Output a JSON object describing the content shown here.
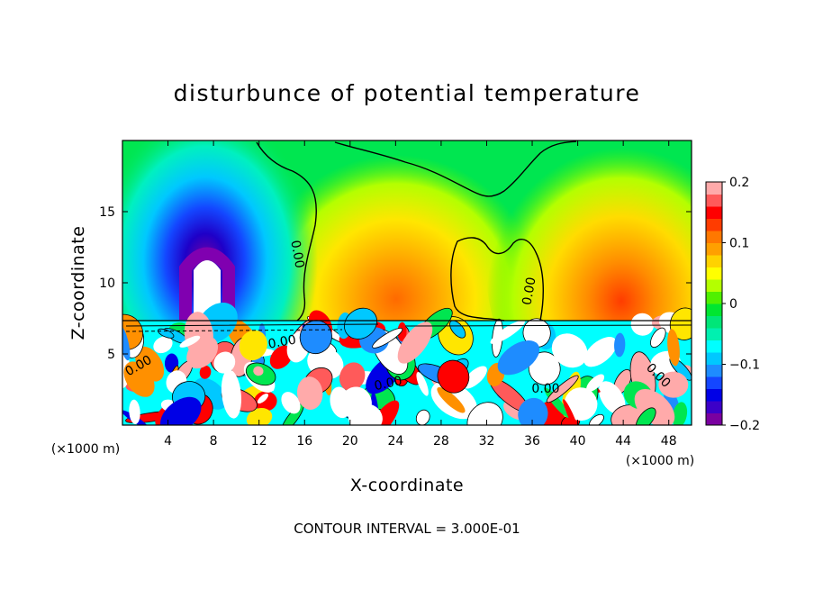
{
  "chart_data": {
    "type": "heatmap",
    "title": "disturbunce of potential temperature",
    "xlabel": "X-coordinate",
    "ylabel": "Z-coordinate",
    "x_unit_label": "(×1000 m)",
    "xlim": [
      0,
      50
    ],
    "ylim": [
      0,
      20
    ],
    "x_ticks": [
      4,
      8,
      12,
      16,
      20,
      24,
      28,
      32,
      36,
      40,
      44,
      48
    ],
    "y_ticks": [
      5,
      10,
      15
    ],
    "colorbar": {
      "range": [
        -0.2,
        0.2
      ],
      "ticks": [
        0.2,
        0.1,
        0,
        -0.1,
        -0.2
      ],
      "tick_labels": [
        "0.2",
        "0.1",
        "0",
        "−0.1",
        "−0.2"
      ],
      "levels": [
        "#7a00a0",
        "#3c00c8",
        "#0000e6",
        "#1446ff",
        "#1e8cff",
        "#00c8ff",
        "#00ffff",
        "#00f0b0",
        "#00e678",
        "#00e630",
        "#50f000",
        "#b4ff00",
        "#ffff00",
        "#ffd200",
        "#ffa000",
        "#ff7800",
        "#ff3c00",
        "#ff0000",
        "#ff5a5a",
        "#ffaaaa"
      ]
    },
    "features": [
      {
        "kind": "cold anomaly",
        "x": 7,
        "z_from": 7,
        "z_to": 18,
        "value_min": -0.2
      },
      {
        "kind": "warm anomaly",
        "x": 23,
        "z_from": 7,
        "z_to": 14,
        "value_max": 0.1
      },
      {
        "kind": "warm anomaly",
        "x": 43,
        "z_from": 7,
        "z_to": 19,
        "value_max": 0.15
      }
    ],
    "contour_labels": [
      "0.00",
      "0.00",
      "0.00",
      "0.00",
      "0.00",
      "0.00",
      "0.00"
    ],
    "contour_interval_text": "CONTOUR INTERVAL = 3.000E-01"
  }
}
